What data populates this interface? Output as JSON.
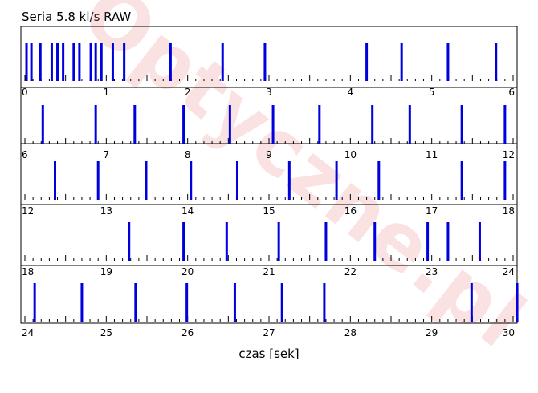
{
  "chart_data": {
    "type": "bar",
    "title": "Seria 5.8 kl/s RAW",
    "xlabel": "czas [sek]",
    "ylabel": "",
    "grid": false,
    "rows": [
      {
        "xlim": [
          0,
          6
        ],
        "tick_labels": [
          "0",
          "1",
          "2",
          "3",
          "4",
          "5",
          "6"
        ],
        "shots": [
          0.02,
          0.08,
          0.19,
          0.33,
          0.4,
          0.47,
          0.6,
          0.67,
          0.81,
          0.87,
          0.94,
          1.08,
          1.22,
          1.79,
          2.43,
          2.95,
          4.2,
          4.63,
          5.2,
          5.79
        ]
      },
      {
        "xlim": [
          6,
          12
        ],
        "tick_labels": [
          "6",
          "7",
          "8",
          "9",
          "10",
          "11",
          "12"
        ],
        "shots": [
          6.22,
          6.87,
          7.35,
          7.95,
          8.52,
          9.05,
          9.62,
          10.27,
          10.73,
          11.37,
          11.9
        ]
      },
      {
        "xlim": [
          12,
          18
        ],
        "tick_labels": [
          "12",
          "13",
          "14",
          "15",
          "16",
          "17",
          "18"
        ],
        "shots": [
          12.37,
          12.9,
          13.49,
          14.04,
          14.61,
          15.25,
          15.83,
          16.35,
          17.37,
          17.9
        ]
      },
      {
        "xlim": [
          18,
          24
        ],
        "tick_labels": [
          "18",
          "19",
          "20",
          "21",
          "22",
          "23",
          "24"
        ],
        "shots": [
          19.28,
          19.95,
          20.48,
          21.12,
          21.7,
          22.3,
          22.95,
          23.2,
          23.59
        ]
      },
      {
        "xlim": [
          24,
          30
        ],
        "tick_labels": [
          "24",
          "25",
          "26",
          "27",
          "28",
          "29",
          "30"
        ],
        "shots": [
          24.12,
          24.7,
          25.36,
          25.99,
          26.58,
          27.16,
          27.68,
          29.49,
          30.05
        ]
      }
    ],
    "colors": {
      "shot": "#0000dd",
      "axis": "#000000"
    }
  },
  "watermark": "Optyczne.pl"
}
